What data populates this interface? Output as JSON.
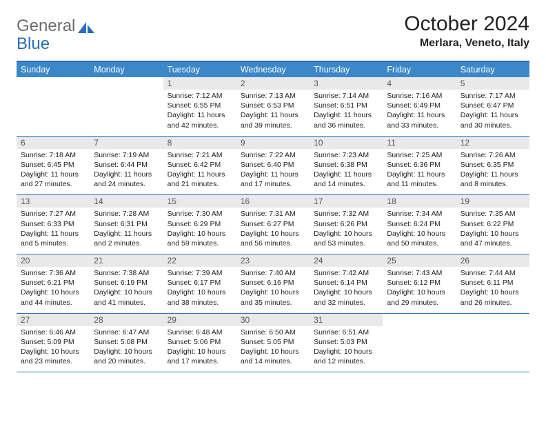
{
  "logo": {
    "word1": "General",
    "word2": "Blue"
  },
  "title": "October 2024",
  "location": "Merlara, Veneto, Italy",
  "colors": {
    "header_bg": "#3b87c8",
    "rule": "#2a6db8",
    "daynum_bg": "#e9e9e9",
    "daynum_fg": "#555555",
    "text": "#222222",
    "logo_gray": "#6b6b6b",
    "logo_blue": "#2a6db8"
  },
  "day_headers": [
    "Sunday",
    "Monday",
    "Tuesday",
    "Wednesday",
    "Thursday",
    "Friday",
    "Saturday"
  ],
  "weeks": [
    [
      {
        "n": "",
        "sr": "",
        "ss": "",
        "dl": ""
      },
      {
        "n": "",
        "sr": "",
        "ss": "",
        "dl": ""
      },
      {
        "n": "1",
        "sr": "Sunrise: 7:12 AM",
        "ss": "Sunset: 6:55 PM",
        "dl": "Daylight: 11 hours and 42 minutes."
      },
      {
        "n": "2",
        "sr": "Sunrise: 7:13 AM",
        "ss": "Sunset: 6:53 PM",
        "dl": "Daylight: 11 hours and 39 minutes."
      },
      {
        "n": "3",
        "sr": "Sunrise: 7:14 AM",
        "ss": "Sunset: 6:51 PM",
        "dl": "Daylight: 11 hours and 36 minutes."
      },
      {
        "n": "4",
        "sr": "Sunrise: 7:16 AM",
        "ss": "Sunset: 6:49 PM",
        "dl": "Daylight: 11 hours and 33 minutes."
      },
      {
        "n": "5",
        "sr": "Sunrise: 7:17 AM",
        "ss": "Sunset: 6:47 PM",
        "dl": "Daylight: 11 hours and 30 minutes."
      }
    ],
    [
      {
        "n": "6",
        "sr": "Sunrise: 7:18 AM",
        "ss": "Sunset: 6:45 PM",
        "dl": "Daylight: 11 hours and 27 minutes."
      },
      {
        "n": "7",
        "sr": "Sunrise: 7:19 AM",
        "ss": "Sunset: 6:44 PM",
        "dl": "Daylight: 11 hours and 24 minutes."
      },
      {
        "n": "8",
        "sr": "Sunrise: 7:21 AM",
        "ss": "Sunset: 6:42 PM",
        "dl": "Daylight: 11 hours and 21 minutes."
      },
      {
        "n": "9",
        "sr": "Sunrise: 7:22 AM",
        "ss": "Sunset: 6:40 PM",
        "dl": "Daylight: 11 hours and 17 minutes."
      },
      {
        "n": "10",
        "sr": "Sunrise: 7:23 AM",
        "ss": "Sunset: 6:38 PM",
        "dl": "Daylight: 11 hours and 14 minutes."
      },
      {
        "n": "11",
        "sr": "Sunrise: 7:25 AM",
        "ss": "Sunset: 6:36 PM",
        "dl": "Daylight: 11 hours and 11 minutes."
      },
      {
        "n": "12",
        "sr": "Sunrise: 7:26 AM",
        "ss": "Sunset: 6:35 PM",
        "dl": "Daylight: 11 hours and 8 minutes."
      }
    ],
    [
      {
        "n": "13",
        "sr": "Sunrise: 7:27 AM",
        "ss": "Sunset: 6:33 PM",
        "dl": "Daylight: 11 hours and 5 minutes."
      },
      {
        "n": "14",
        "sr": "Sunrise: 7:28 AM",
        "ss": "Sunset: 6:31 PM",
        "dl": "Daylight: 11 hours and 2 minutes."
      },
      {
        "n": "15",
        "sr": "Sunrise: 7:30 AM",
        "ss": "Sunset: 6:29 PM",
        "dl": "Daylight: 10 hours and 59 minutes."
      },
      {
        "n": "16",
        "sr": "Sunrise: 7:31 AM",
        "ss": "Sunset: 6:27 PM",
        "dl": "Daylight: 10 hours and 56 minutes."
      },
      {
        "n": "17",
        "sr": "Sunrise: 7:32 AM",
        "ss": "Sunset: 6:26 PM",
        "dl": "Daylight: 10 hours and 53 minutes."
      },
      {
        "n": "18",
        "sr": "Sunrise: 7:34 AM",
        "ss": "Sunset: 6:24 PM",
        "dl": "Daylight: 10 hours and 50 minutes."
      },
      {
        "n": "19",
        "sr": "Sunrise: 7:35 AM",
        "ss": "Sunset: 6:22 PM",
        "dl": "Daylight: 10 hours and 47 minutes."
      }
    ],
    [
      {
        "n": "20",
        "sr": "Sunrise: 7:36 AM",
        "ss": "Sunset: 6:21 PM",
        "dl": "Daylight: 10 hours and 44 minutes."
      },
      {
        "n": "21",
        "sr": "Sunrise: 7:38 AM",
        "ss": "Sunset: 6:19 PM",
        "dl": "Daylight: 10 hours and 41 minutes."
      },
      {
        "n": "22",
        "sr": "Sunrise: 7:39 AM",
        "ss": "Sunset: 6:17 PM",
        "dl": "Daylight: 10 hours and 38 minutes."
      },
      {
        "n": "23",
        "sr": "Sunrise: 7:40 AM",
        "ss": "Sunset: 6:16 PM",
        "dl": "Daylight: 10 hours and 35 minutes."
      },
      {
        "n": "24",
        "sr": "Sunrise: 7:42 AM",
        "ss": "Sunset: 6:14 PM",
        "dl": "Daylight: 10 hours and 32 minutes."
      },
      {
        "n": "25",
        "sr": "Sunrise: 7:43 AM",
        "ss": "Sunset: 6:12 PM",
        "dl": "Daylight: 10 hours and 29 minutes."
      },
      {
        "n": "26",
        "sr": "Sunrise: 7:44 AM",
        "ss": "Sunset: 6:11 PM",
        "dl": "Daylight: 10 hours and 26 minutes."
      }
    ],
    [
      {
        "n": "27",
        "sr": "Sunrise: 6:46 AM",
        "ss": "Sunset: 5:09 PM",
        "dl": "Daylight: 10 hours and 23 minutes."
      },
      {
        "n": "28",
        "sr": "Sunrise: 6:47 AM",
        "ss": "Sunset: 5:08 PM",
        "dl": "Daylight: 10 hours and 20 minutes."
      },
      {
        "n": "29",
        "sr": "Sunrise: 6:48 AM",
        "ss": "Sunset: 5:06 PM",
        "dl": "Daylight: 10 hours and 17 minutes."
      },
      {
        "n": "30",
        "sr": "Sunrise: 6:50 AM",
        "ss": "Sunset: 5:05 PM",
        "dl": "Daylight: 10 hours and 14 minutes."
      },
      {
        "n": "31",
        "sr": "Sunrise: 6:51 AM",
        "ss": "Sunset: 5:03 PM",
        "dl": "Daylight: 10 hours and 12 minutes."
      },
      {
        "n": "",
        "sr": "",
        "ss": "",
        "dl": ""
      },
      {
        "n": "",
        "sr": "",
        "ss": "",
        "dl": ""
      }
    ]
  ]
}
